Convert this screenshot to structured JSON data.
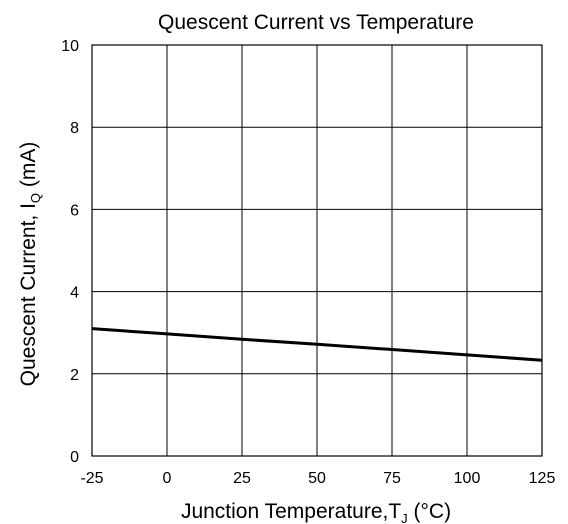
{
  "chart_data": {
    "type": "line",
    "title": "Quescent Current vs Temperature",
    "xlabel": {
      "text": "Junction Temperature,T",
      "subscript": "J",
      "unit": " (°C)"
    },
    "ylabel": {
      "text": "Quescent Current, I",
      "subscript": "Q",
      "unit": " (mA)"
    },
    "xlim": [
      -25,
      125
    ],
    "ylim": [
      0,
      10
    ],
    "xticks": [
      -25,
      0,
      25,
      50,
      75,
      100,
      125
    ],
    "yticks": [
      0,
      2,
      4,
      6,
      8,
      10
    ],
    "grid": true,
    "series": [
      {
        "color": "#000000",
        "x": [
          -25,
          0,
          25,
          50,
          75,
          100,
          125
        ],
        "y": [
          3.1,
          2.97,
          2.84,
          2.72,
          2.59,
          2.46,
          2.33
        ]
      }
    ]
  }
}
